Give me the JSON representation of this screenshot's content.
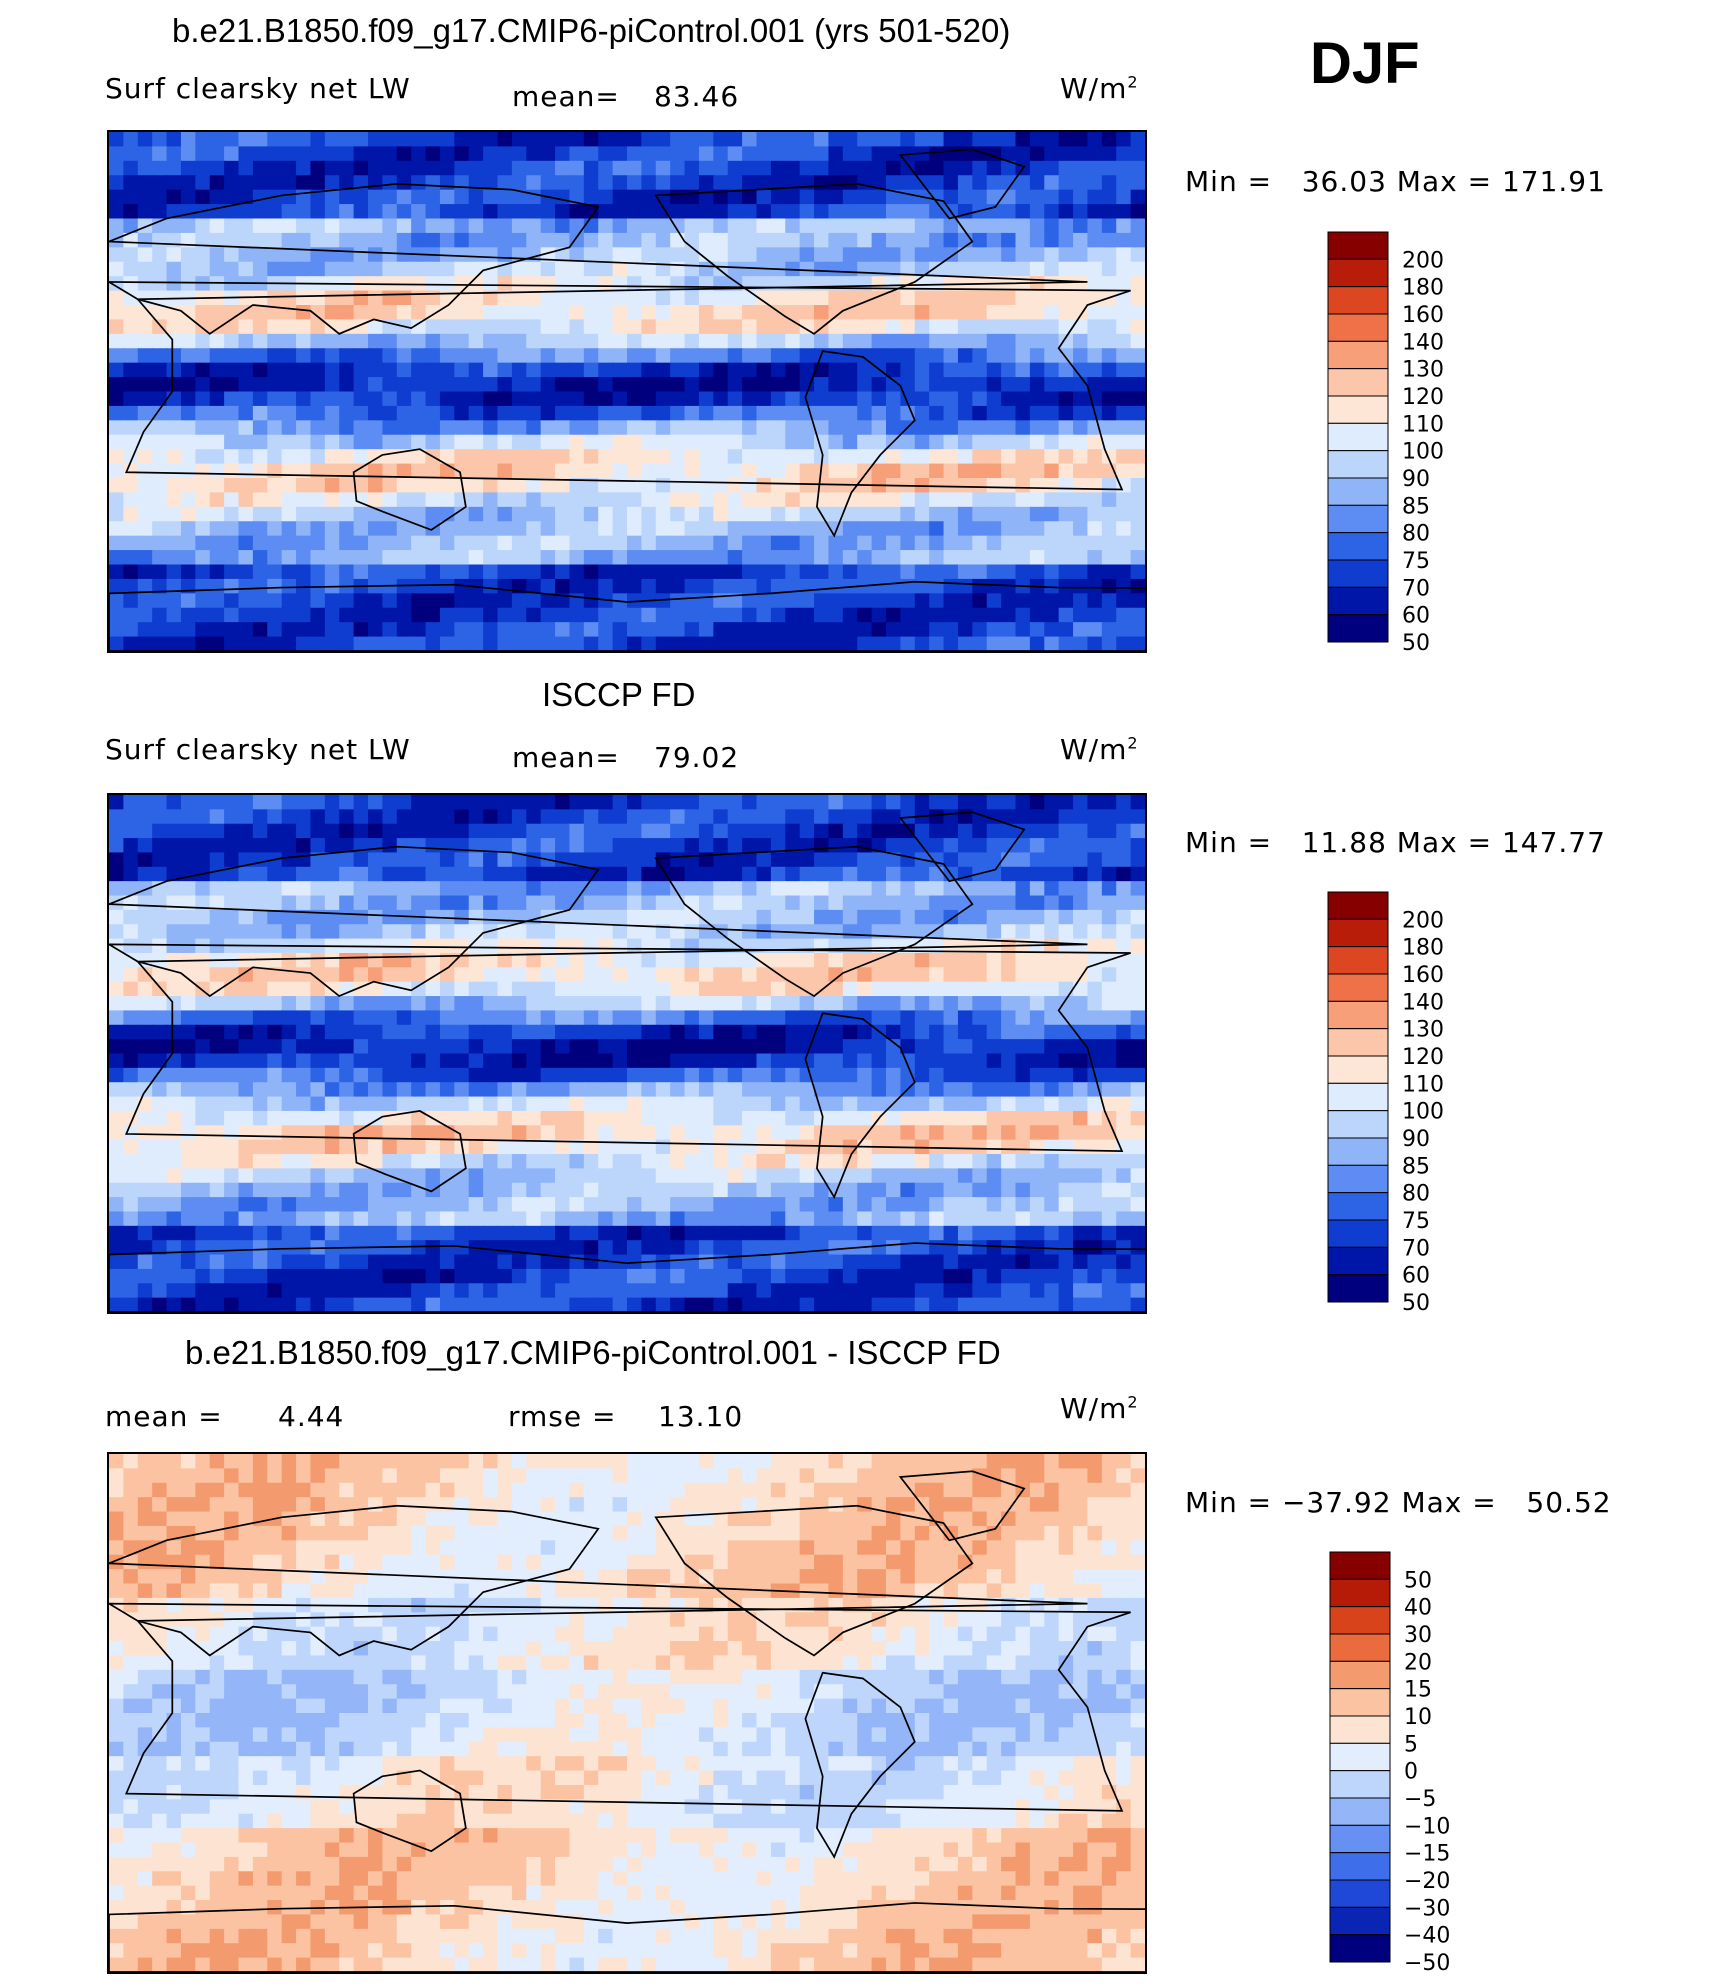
{
  "header": {
    "season": "DJF"
  },
  "palettes": {
    "abs": [
      "#00007f",
      "#0016a9",
      "#0f3dcf",
      "#2d64e6",
      "#5d8df2",
      "#8fb4f7",
      "#bcd6fb",
      "#dfecfd",
      "#fde6d6",
      "#fbc6a9",
      "#f79f78",
      "#ee7148",
      "#dc4621",
      "#b81d0a",
      "#870000"
    ],
    "diff": [
      "#00007f",
      "#0a24b4",
      "#1f47d8",
      "#3e6ee9",
      "#6691f2",
      "#94b6f8",
      "#bed6fb",
      "#e2eefd",
      "#fde4d2",
      "#fbc3a2",
      "#f49a6f",
      "#ea6c3e",
      "#d8431b",
      "#b51b07",
      "#870000"
    ]
  },
  "panels": [
    {
      "title": "b.e21.B1850.f09_g17.CMIP6-piControl.001 (yrs 501-520)",
      "left_label": "Surf clearsky net LW",
      "stat_label": "mean=",
      "stat_value": "83.46",
      "units": "W/m",
      "units_exp": "2",
      "minmax": "Min =   36.03 Max = 171.91",
      "colorbar_ticks": [
        "200",
        "180",
        "160",
        "140",
        "130",
        "120",
        "110",
        "100",
        "90",
        "85",
        "80",
        "75",
        "70",
        "60",
        "50"
      ],
      "palette": "abs",
      "map_mean": 83.46
    },
    {
      "title": "ISCCP FD",
      "left_label": "Surf clearsky net LW",
      "stat_label": "mean=",
      "stat_value": "79.02",
      "units": "W/m",
      "units_exp": "2",
      "minmax": "Min =   11.88 Max = 147.77",
      "colorbar_ticks": [
        "200",
        "180",
        "160",
        "140",
        "130",
        "120",
        "110",
        "100",
        "90",
        "85",
        "80",
        "75",
        "70",
        "60",
        "50"
      ],
      "palette": "abs",
      "map_mean": 79.02
    },
    {
      "title": "b.e21.B1850.f09_g17.CMIP6-piControl.001 - ISCCP FD",
      "left_label": "mean =",
      "left_value": "4.44",
      "stat_label": "rmse =",
      "stat_value": "13.10",
      "units": "W/m",
      "units_exp": "2",
      "minmax": "Min = −37.92 Max =   50.52",
      "colorbar_ticks": [
        "50",
        "40",
        "30",
        "20",
        "15",
        "10",
        "5",
        "0",
        "−5",
        "−10",
        "−15",
        "−20",
        "−30",
        "−40",
        "−50"
      ],
      "palette": "diff",
      "map_mean": 4.44
    }
  ]
}
